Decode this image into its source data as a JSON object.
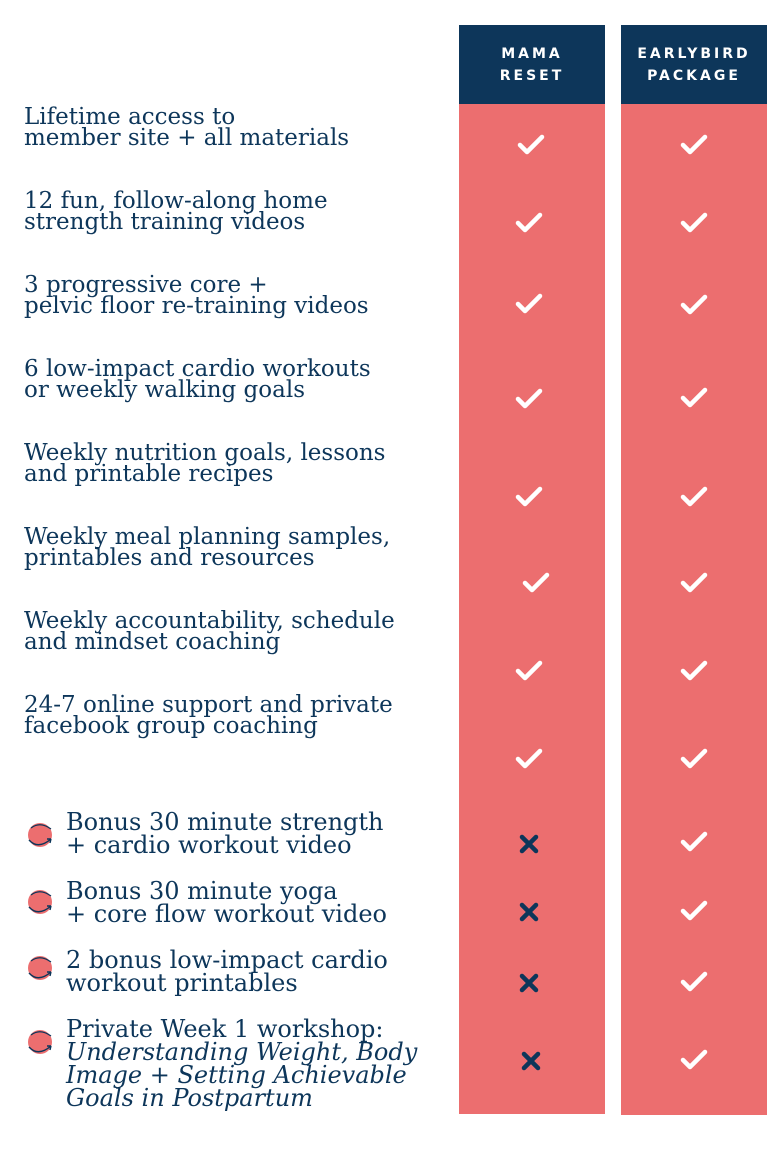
{
  "columns": [
    {
      "label_line1": "MAMA",
      "label_line2": "RESET"
    },
    {
      "label_line1": "EARLYBIRD",
      "label_line2": "PACKAGE"
    }
  ],
  "features": [
    {
      "line1": "Lifetime access to",
      "line2": "member site + all materials"
    },
    {
      "line1": "12 fun, follow-along home",
      "line2": "strength training videos"
    },
    {
      "line1": "3 progressive core +",
      "line2": "pelvic floor re-training videos"
    },
    {
      "line1": "6 low-impact cardio workouts",
      "line2": "or weekly walking goals"
    },
    {
      "line1": "Weekly nutrition goals, lessons",
      "line2": "and printable recipes"
    },
    {
      "line1": "Weekly meal planning samples,",
      "line2": "printables and resources"
    },
    {
      "line1": "Weekly accountability, schedule",
      "line2": "and mindset coaching"
    },
    {
      "line1": "24-7 online support and private",
      "line2": "facebook group coaching"
    }
  ],
  "bonuses": [
    {
      "line1": "Bonus 30 minute strength",
      "line2": "+ cardio workout video"
    },
    {
      "line1": "Bonus 30 minute yoga",
      "line2": "+ core flow workout video"
    },
    {
      "line1": "2 bonus low-impact cardio",
      "line2": "workout printables"
    },
    {
      "line1": "Private Week 1 workshop:",
      "line2": "Understanding Weight, Body",
      "line3": "Image +  Setting Achievable",
      "line4": "Goals in Postpartum"
    }
  ],
  "icons": {
    "included": "check-icon",
    "excluded": "cross-icon",
    "bonus": "circle-arrow-icon"
  },
  "colors": {
    "navy": "#0d365a",
    "coral": "#ec6e6f",
    "white": "#ffffff"
  }
}
